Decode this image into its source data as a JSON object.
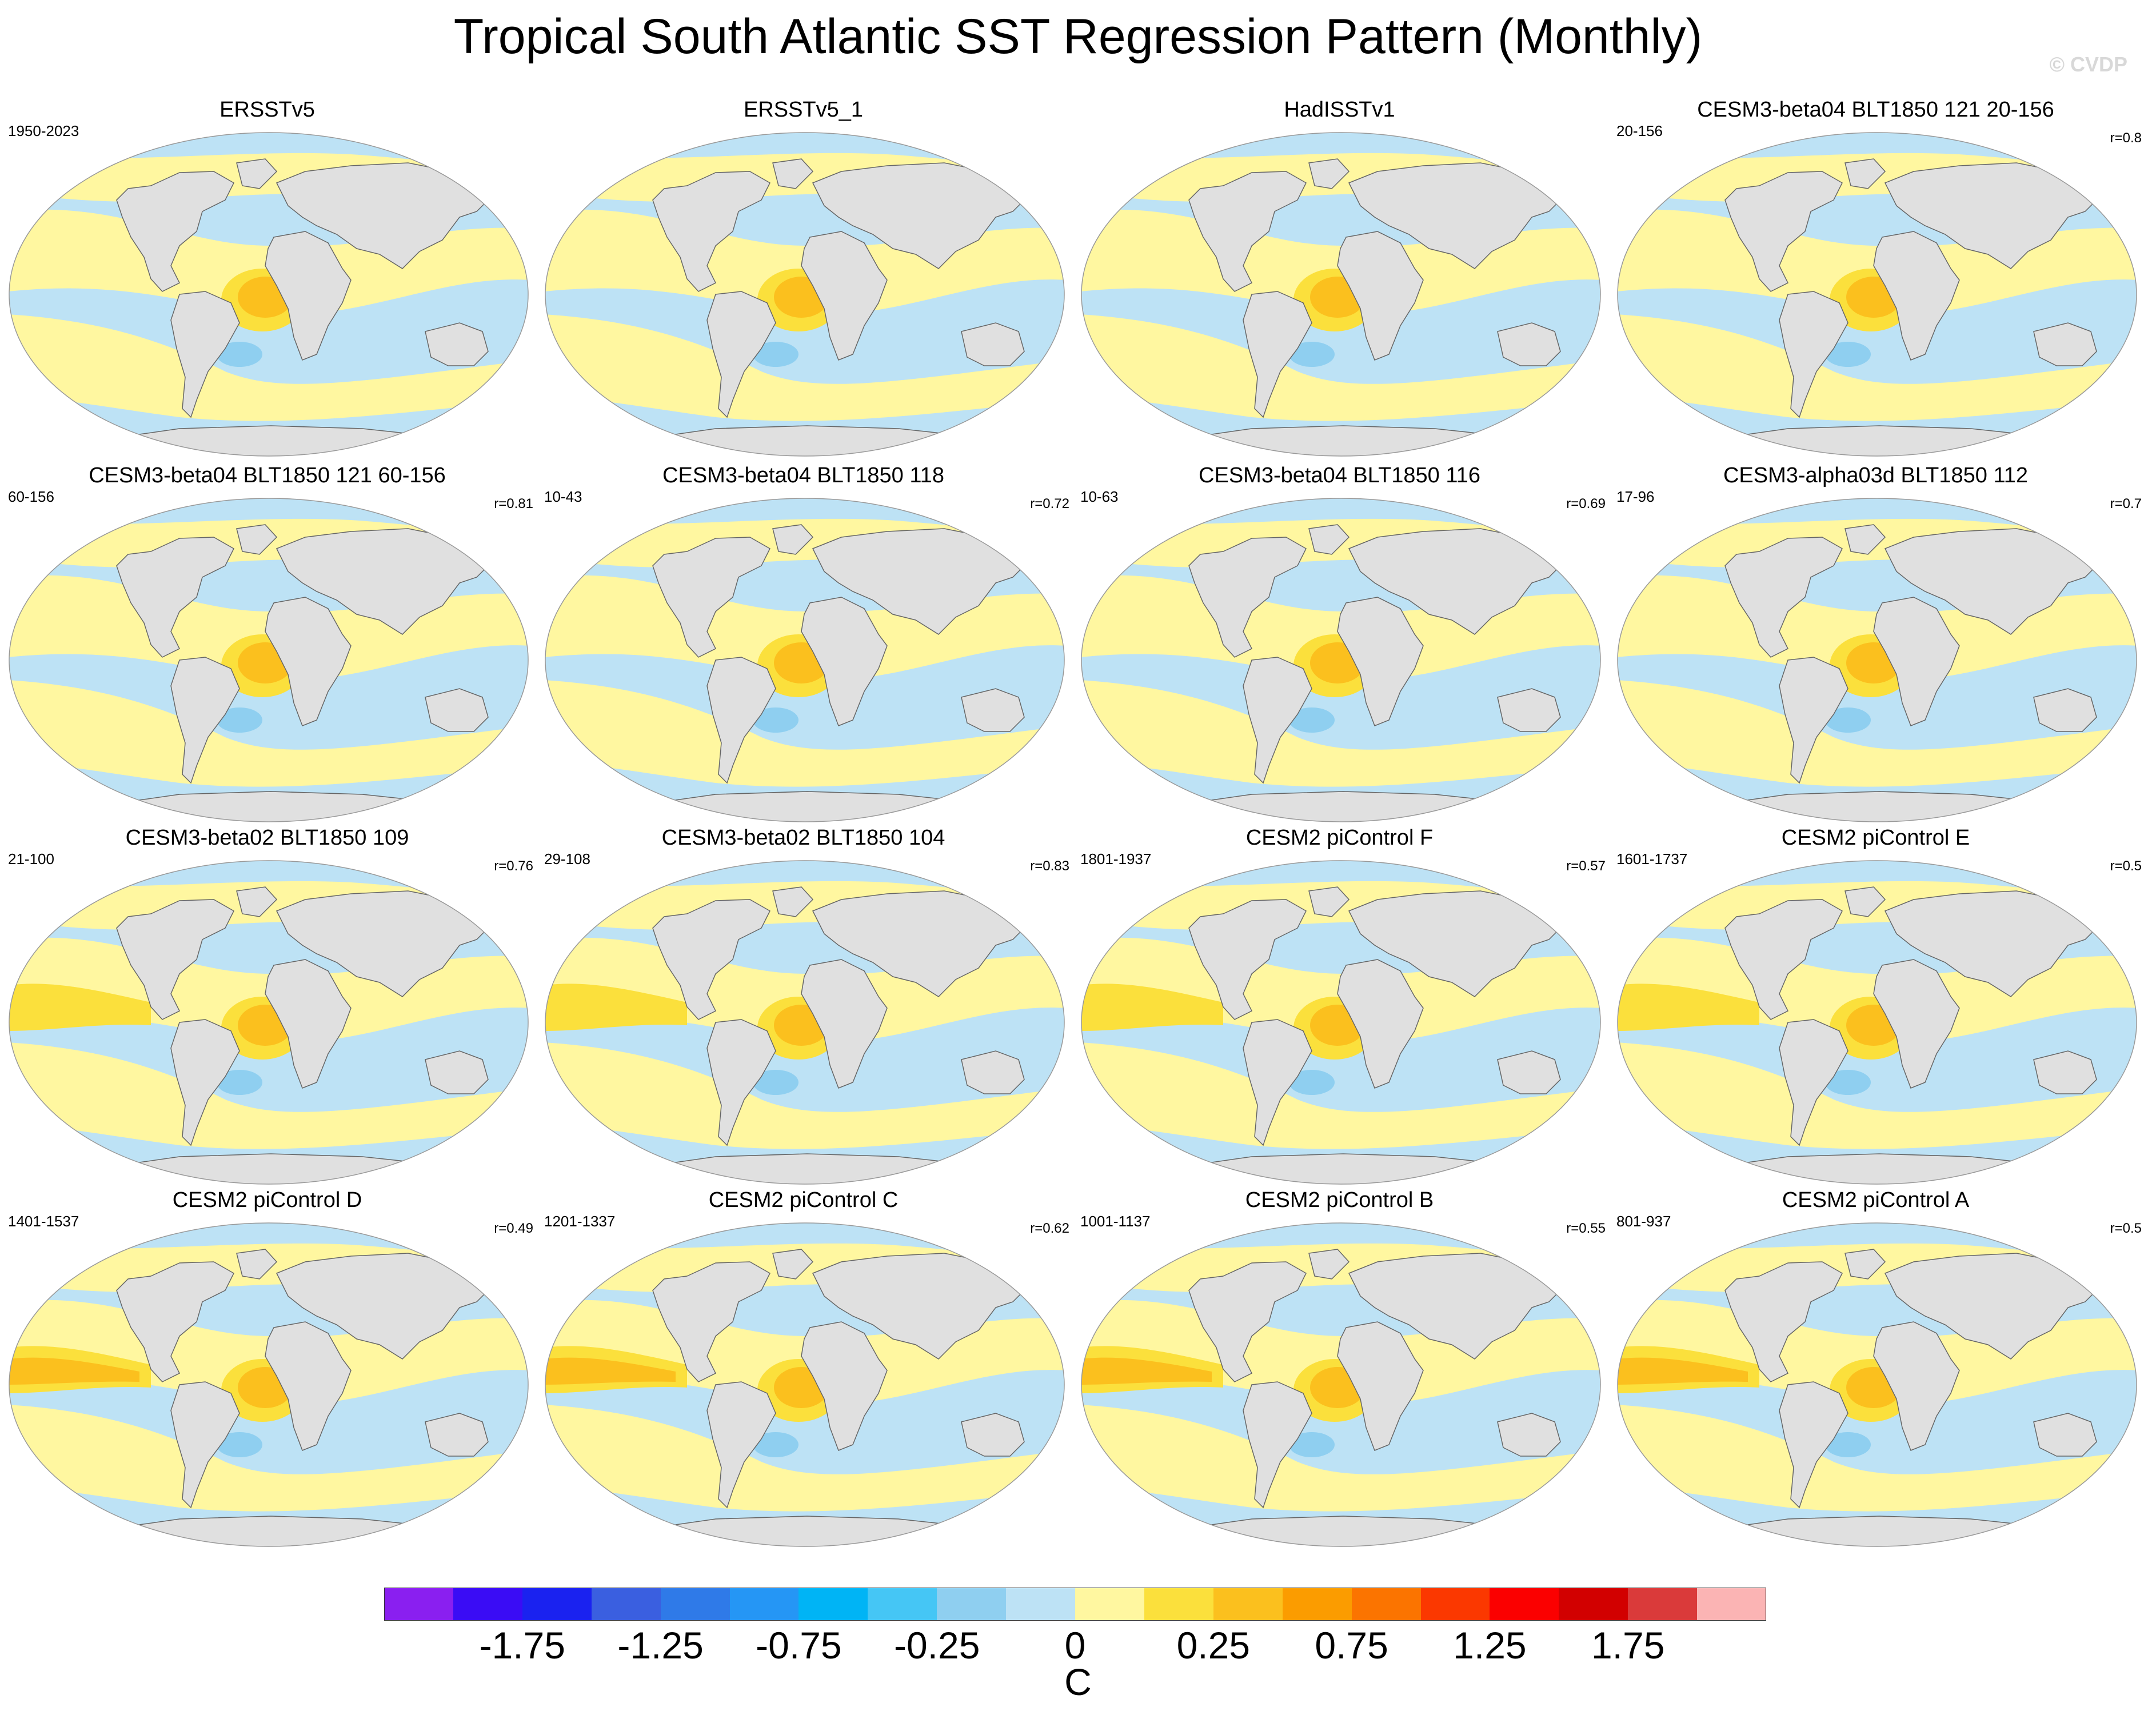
{
  "title": "Tropical South Atlantic SST Regression Pattern (Monthly)",
  "watermark": "© CVDP",
  "panels": [
    {
      "title": "ERSSTv5",
      "years": "1950-2023",
      "corr": ""
    },
    {
      "title": "ERSSTv5_1",
      "years": "",
      "corr": ""
    },
    {
      "title": "HadISSTv1",
      "years": "",
      "corr": ""
    },
    {
      "title": "CESM3-beta04 BLT1850 121 20-156",
      "years": "20-156",
      "corr": "r=0.8"
    },
    {
      "title": "CESM3-beta04 BLT1850 121 60-156",
      "years": "60-156",
      "corr": "r=0.81"
    },
    {
      "title": "CESM3-beta04 BLT1850 118",
      "years": "10-43",
      "corr": "r=0.72"
    },
    {
      "title": "CESM3-beta04 BLT1850 116",
      "years": "10-63",
      "corr": "r=0.69"
    },
    {
      "title": "CESM3-alpha03d BLT1850 112",
      "years": "17-96",
      "corr": "r=0.7"
    },
    {
      "title": "CESM3-beta02 BLT1850 109",
      "years": "21-100",
      "corr": "r=0.76"
    },
    {
      "title": "CESM3-beta02 BLT1850 104",
      "years": "29-108",
      "corr": "r=0.83"
    },
    {
      "title": "CESM2 piControl F",
      "years": "1801-1937",
      "corr": "r=0.57"
    },
    {
      "title": "CESM2 piControl E",
      "years": "1601-1737",
      "corr": "r=0.5"
    },
    {
      "title": "CESM2 piControl D",
      "years": "1401-1537",
      "corr": "r=0.49"
    },
    {
      "title": "CESM2 piControl C",
      "years": "1201-1337",
      "corr": "r=0.62"
    },
    {
      "title": "CESM2 piControl B",
      "years": "1001-1137",
      "corr": "r=0.55"
    },
    {
      "title": "CESM2 piControl A",
      "years": "801-937",
      "corr": "r=0.5"
    }
  ],
  "colorbar": {
    "unit": "C",
    "tick_labels": [
      "-1.75",
      "-1.25",
      "-0.75",
      "-0.25",
      "0",
      "0.25",
      "0.75",
      "1.25",
      "1.75"
    ],
    "colors": [
      "#8a1ff0",
      "#3a0cf5",
      "#1a22f0",
      "#3a5fe0",
      "#2f7ae8",
      "#2596f5",
      "#00b4f5",
      "#45c6f5",
      "#8fcff0",
      "#bde2f5",
      "#fff7a0",
      "#fbe03c",
      "#fbc01e",
      "#fb9c00",
      "#fb7400",
      "#fb3800",
      "#fb0000",
      "#d20000",
      "#da3a3a",
      "#fbb4b4"
    ]
  },
  "map_colors": {
    "ocean_neg": "#bde2f5",
    "ocean_pos": "#fff7a0",
    "warm": "#fbe03c",
    "warmer": "#fbc01e",
    "cool": "#8fcff0",
    "land": "#e0e0e0"
  }
}
